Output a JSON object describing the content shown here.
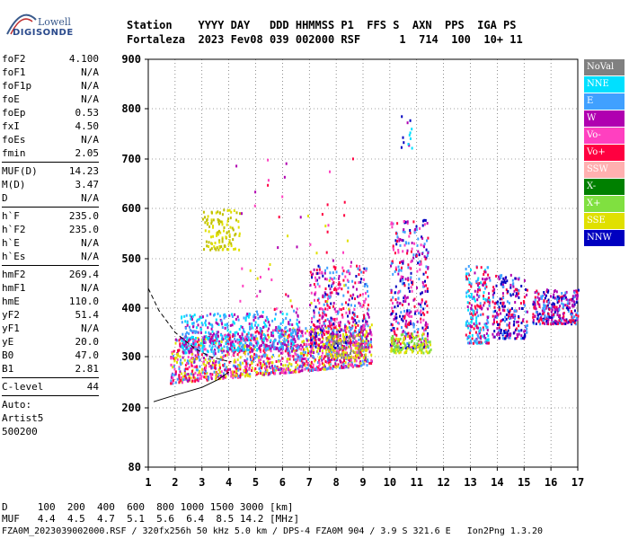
{
  "logo": {
    "brand": "Lowell",
    "name": "DIGISONDE"
  },
  "header": {
    "line1": "Station    YYYY DAY   DDD HHMMSS P1  FFS S  AXN  PPS  IGA PS",
    "line2": "Fortaleza  2023 Fev08 039 002000 RSF      1  714  100  10+ 11"
  },
  "params_group1": [
    {
      "name": "foF2",
      "value": "4.100"
    },
    {
      "name": "foF1",
      "value": "N/A"
    },
    {
      "name": "foF1p",
      "value": "N/A"
    },
    {
      "name": "foE",
      "value": "N/A"
    },
    {
      "name": "foEp",
      "value": "0.53"
    },
    {
      "name": "fxI",
      "value": "4.50"
    },
    {
      "name": "foEs",
      "value": "N/A"
    },
    {
      "name": "fmin",
      "value": "2.05"
    }
  ],
  "params_group2": [
    {
      "name": "MUF(D)",
      "value": "14.23"
    },
    {
      "name": "M(D)",
      "value": "3.47"
    },
    {
      "name": "D",
      "value": "N/A"
    }
  ],
  "params_group3": [
    {
      "name": "h`F",
      "value": "235.0"
    },
    {
      "name": "h`F2",
      "value": "235.0"
    },
    {
      "name": "h`E",
      "value": "N/A"
    },
    {
      "name": "h`Es",
      "value": "N/A"
    }
  ],
  "params_group4": [
    {
      "name": "hmF2",
      "value": "269.4"
    },
    {
      "name": "hmF1",
      "value": "N/A"
    },
    {
      "name": "hmE",
      "value": "110.0"
    },
    {
      "name": "yF2",
      "value": "51.4"
    },
    {
      "name": "yF1",
      "value": "N/A"
    },
    {
      "name": "yE",
      "value": "20.0"
    },
    {
      "name": "B0",
      "value": "47.0"
    },
    {
      "name": "B1",
      "value": "2.81"
    }
  ],
  "params_group5": [
    {
      "name": "C-level",
      "value": "44"
    }
  ],
  "auto": {
    "line1": "Auto:",
    "line2": "Artist5",
    "line3": "500200"
  },
  "legend": [
    {
      "label": "NoVal",
      "color": "#808080"
    },
    {
      "label": "NNE",
      "color": "#00e0ff"
    },
    {
      "label": "E",
      "color": "#40a0ff"
    },
    {
      "label": "W",
      "color": "#b000b0"
    },
    {
      "label": "Vo-",
      "color": "#ff40c0"
    },
    {
      "label": "Vo+",
      "color": "#ff0040"
    },
    {
      "label": "SSW",
      "color": "#ffb0b0"
    },
    {
      "label": "X-",
      "color": "#008000"
    },
    {
      "label": "X+",
      "color": "#80e040"
    },
    {
      "label": "SSE",
      "color": "#e0e000"
    },
    {
      "label": "NNW",
      "color": "#0000c0"
    }
  ],
  "bottom": {
    "d_line": "D     100  200  400  600  800 1000 1500 3000 [km]",
    "muf_line": "MUF   4.4  4.5  4.7  5.1  5.6  6.4  8.5 14.2 [MHz]",
    "file_line": "FZA0M_2023039002000.RSF / 320fx256h 50 kHz 5.0 km / DPS-4 FZA0M 904 / 3.9 S 321.6 E   Ion2Png 1.3.20"
  },
  "chart_data": {
    "type": "scatter",
    "x_ticks": [
      "1",
      "2",
      "3",
      "4",
      "5",
      "6",
      "7",
      "8",
      "9",
      "10",
      "11",
      "12",
      "13",
      "14",
      "15",
      "16",
      "17"
    ],
    "y_ticks": [
      "80",
      "200",
      "300",
      "400",
      "500",
      "600",
      "700",
      "800",
      "900"
    ],
    "xlim": [
      1,
      17
    ],
    "ylim": [
      80,
      900
    ],
    "grid": true,
    "traces": [
      {
        "name": "trace_curve_lower",
        "x": [
          1.2,
          2,
          3,
          3.6,
          4
        ],
        "y": [
          212,
          225,
          240,
          255,
          270
        ]
      },
      {
        "name": "trace_curve_upper",
        "x": [
          1,
          1.4,
          2,
          2.7,
          3.3,
          3.9,
          4.1
        ],
        "y": [
          440,
          395,
          350,
          318,
          300,
          292,
          290
        ]
      }
    ],
    "clusters": [
      {
        "name": "F-trace-main",
        "x": [
          1.8,
          9.3
        ],
        "y": [
          250,
          340
        ],
        "n": 1400,
        "colors": [
          "#ff0040",
          "#ff40c0",
          "#40a0ff",
          "#b000b0",
          "#e0e000"
        ],
        "slope": 0.12
      },
      {
        "name": "F-trace-upper",
        "x": [
          2.2,
          6.6
        ],
        "y": [
          310,
          390
        ],
        "n": 500,
        "colors": [
          "#40a0ff",
          "#00e0ff",
          "#b000b0"
        ],
        "slope": 0.05
      },
      {
        "name": "spread-7-9",
        "x": [
          7.0,
          9.2
        ],
        "y": [
          320,
          490
        ],
        "n": 420,
        "colors": [
          "#ff0040",
          "#b000b0",
          "#0000c0",
          "#ff40c0",
          "#40a0ff"
        ],
        "slope": 0
      },
      {
        "name": "yellow-low",
        "x": [
          7.6,
          9.1
        ],
        "y": [
          300,
          350
        ],
        "n": 120,
        "colors": [
          "#e0e000",
          "#808080"
        ],
        "slope": 0
      },
      {
        "name": "yellow-upper",
        "x": [
          3.0,
          4.4
        ],
        "y": [
          520,
          600
        ],
        "n": 110,
        "colors": [
          "#e0e000",
          "#c0c000"
        ],
        "slope": 0
      },
      {
        "name": "cusp-10-11",
        "x": [
          10.0,
          11.4
        ],
        "y": [
          320,
          580
        ],
        "n": 380,
        "colors": [
          "#ff0040",
          "#ff40c0",
          "#b000b0",
          "#0000c0",
          "#40a0ff"
        ],
        "slope": 0
      },
      {
        "name": "yellow-10-11",
        "x": [
          10.0,
          11.5
        ],
        "y": [
          310,
          350
        ],
        "n": 110,
        "colors": [
          "#e0e000",
          "#80e040"
        ],
        "slope": 0
      },
      {
        "name": "cluster-13",
        "x": [
          12.8,
          13.7
        ],
        "y": [
          330,
          490
        ],
        "n": 220,
        "colors": [
          "#00e0ff",
          "#b000b0",
          "#ff0040",
          "#40a0ff"
        ],
        "slope": 0
      },
      {
        "name": "cluster-14",
        "x": [
          13.8,
          15.1
        ],
        "y": [
          340,
          470
        ],
        "n": 240,
        "colors": [
          "#ff0040",
          "#b000b0",
          "#40a0ff",
          "#0000c0"
        ],
        "slope": 0
      },
      {
        "name": "cluster-16",
        "x": [
          15.3,
          17.0
        ],
        "y": [
          370,
          440
        ],
        "n": 280,
        "colors": [
          "#b000b0",
          "#ff0040",
          "#40a0ff",
          "#0000c0"
        ],
        "slope": 0
      },
      {
        "name": "sparse-high",
        "x": [
          4.2,
          9.0
        ],
        "y": [
          400,
          720
        ],
        "n": 60,
        "colors": [
          "#ff0040",
          "#e0e000",
          "#ff40c0",
          "#b000b0"
        ],
        "slope": 0
      },
      {
        "name": "spike-10.6",
        "x": [
          10.4,
          10.8
        ],
        "y": [
          720,
          790
        ],
        "n": 14,
        "colors": [
          "#00e0ff",
          "#0000c0",
          "#b000b0"
        ],
        "slope": 0
      }
    ]
  }
}
